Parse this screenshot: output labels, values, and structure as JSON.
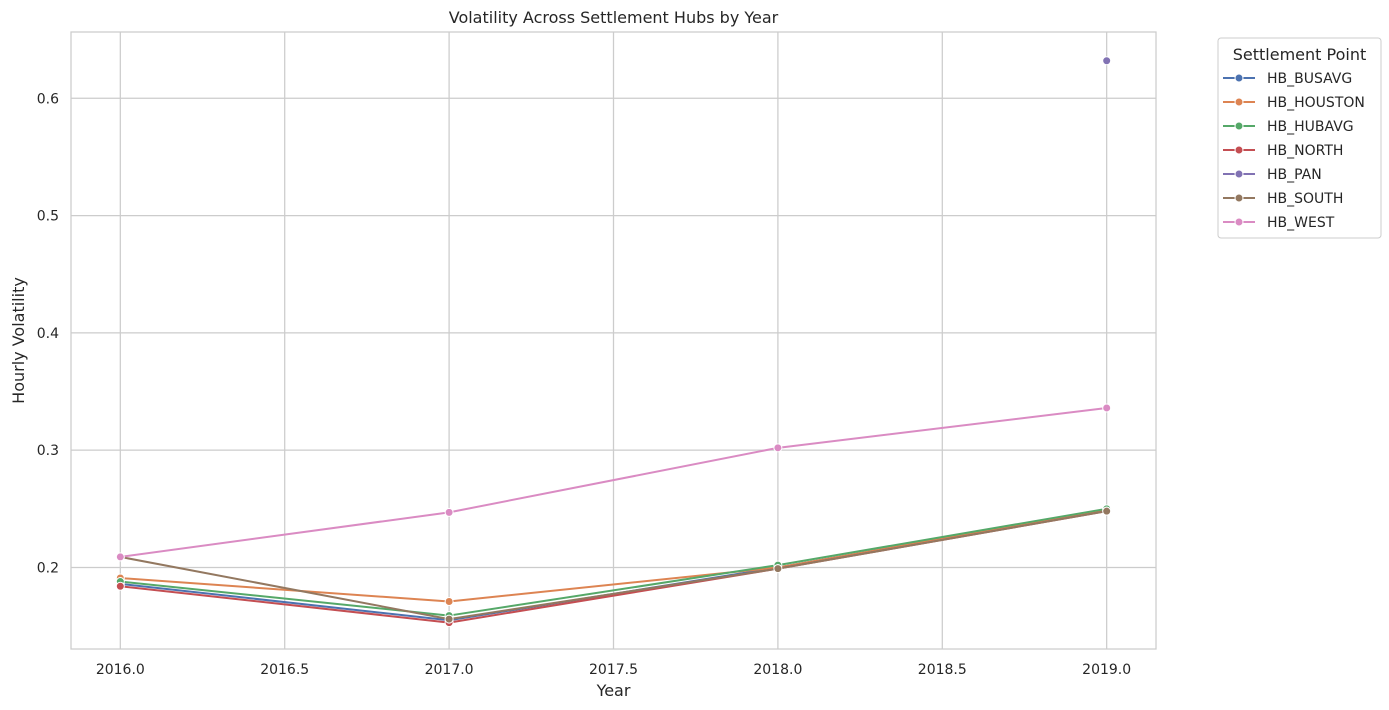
{
  "chart_data": {
    "type": "line",
    "title": "Volatility Across Settlement Hubs by Year",
    "xlabel": "Year",
    "ylabel": "Hourly Volatility",
    "xlim": [
      2015.85,
      2019.15
    ],
    "ylim": [
      0.1305,
      0.6565
    ],
    "x_ticks": [
      2016.0,
      2016.5,
      2017.0,
      2017.5,
      2018.0,
      2018.5,
      2019.0
    ],
    "x_tick_labels": [
      "2016.0",
      "2016.5",
      "2017.0",
      "2017.5",
      "2018.0",
      "2018.5",
      "2019.0"
    ],
    "y_ticks": [
      0.2,
      0.3,
      0.4,
      0.5,
      0.6
    ],
    "y_tick_labels": [
      "0.2",
      "0.3",
      "0.4",
      "0.5",
      "0.6"
    ],
    "grid": true,
    "legend": {
      "title": "Settlement Point",
      "placement": "outside-right"
    },
    "x": [
      2016,
      2017,
      2018,
      2019
    ],
    "series": [
      {
        "name": "HB_BUSAVG",
        "color": "#4c72b0",
        "values": [
          0.186,
          0.155,
          0.2,
          0.249
        ]
      },
      {
        "name": "HB_HOUSTON",
        "color": "#dd8452",
        "values": [
          0.191,
          0.171,
          0.2,
          0.249
        ]
      },
      {
        "name": "HB_HUBAVG",
        "color": "#55a868",
        "values": [
          0.188,
          0.159,
          0.202,
          0.25
        ]
      },
      {
        "name": "HB_NORTH",
        "color": "#c44e52",
        "values": [
          0.184,
          0.153,
          0.199,
          0.248
        ]
      },
      {
        "name": "HB_PAN",
        "color": "#8172b3",
        "values": [
          null,
          null,
          null,
          0.632
        ]
      },
      {
        "name": "HB_SOUTH",
        "color": "#937860",
        "values": [
          0.209,
          0.156,
          0.199,
          0.248
        ]
      },
      {
        "name": "HB_WEST",
        "color": "#da8bc3",
        "values": [
          0.209,
          0.247,
          0.302,
          0.336
        ]
      }
    ]
  }
}
